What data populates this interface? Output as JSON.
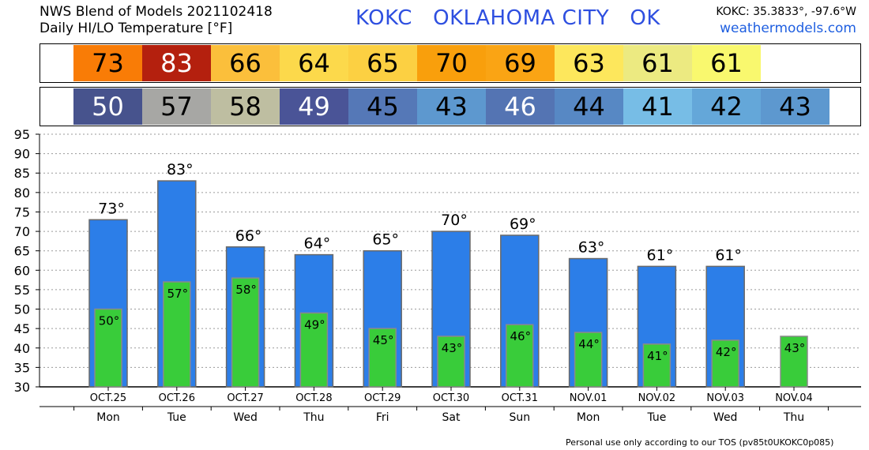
{
  "header": {
    "line1": "NWS Blend of Models 2021102418",
    "line2": "Daily HI/LO Temperature [°F]",
    "station": "KOKC   OKLAHOMA CITY   OK",
    "coords": "KOKC: 35.3833°, -97.6°W",
    "site": "weathermodels.com"
  },
  "hi_strip": [
    {
      "value": "73",
      "bg": "#f97c06",
      "fg": "#000000"
    },
    {
      "value": "83",
      "bg": "#b4200e",
      "fg": "#ffffff"
    },
    {
      "value": "66",
      "bg": "#fbbf3b",
      "fg": "#000000"
    },
    {
      "value": "64",
      "bg": "#fcd94b",
      "fg": "#000000"
    },
    {
      "value": "65",
      "bg": "#fcd042",
      "fg": "#000000"
    },
    {
      "value": "70",
      "bg": "#f99f0c",
      "fg": "#000000"
    },
    {
      "value": "69",
      "bg": "#faa414",
      "fg": "#000000"
    },
    {
      "value": "63",
      "bg": "#fde75c",
      "fg": "#000000"
    },
    {
      "value": "61",
      "bg": "#ecea81",
      "fg": "#000000"
    },
    {
      "value": "61",
      "bg": "#f9f86e",
      "fg": "#000000"
    }
  ],
  "lo_strip": [
    {
      "value": "50",
      "bg": "#47538d",
      "fg": "#ffffff"
    },
    {
      "value": "57",
      "bg": "#a7a7a4",
      "fg": "#000000"
    },
    {
      "value": "58",
      "bg": "#bebea1",
      "fg": "#000000"
    },
    {
      "value": "49",
      "bg": "#4a5497",
      "fg": "#ffffff"
    },
    {
      "value": "45",
      "bg": "#5578b7",
      "fg": "#000000"
    },
    {
      "value": "43",
      "bg": "#5d98cf",
      "fg": "#000000"
    },
    {
      "value": "46",
      "bg": "#5474b3",
      "fg": "#ffffff"
    },
    {
      "value": "44",
      "bg": "#5788c4",
      "fg": "#000000"
    },
    {
      "value": "41",
      "bg": "#77bde6",
      "fg": "#000000"
    },
    {
      "value": "42",
      "bg": "#64a7d9",
      "fg": "#000000"
    },
    {
      "value": "43",
      "bg": "#5d98cf",
      "fg": "#000000"
    }
  ],
  "chart_data": {
    "type": "bar",
    "categories": [
      "OCT.25",
      "OCT.26",
      "OCT.27",
      "OCT.28",
      "OCT.29",
      "OCT.30",
      "OCT.31",
      "NOV.01",
      "NOV.02",
      "NOV.03",
      "NOV.04"
    ],
    "days": [
      "Mon",
      "Tue",
      "Wed",
      "Thu",
      "Fri",
      "Sat",
      "Sun",
      "Mon",
      "Tue",
      "Wed",
      "Thu"
    ],
    "series": [
      {
        "values": [
          73,
          83,
          66,
          64,
          65,
          70,
          69,
          63,
          61,
          61,
          null
        ],
        "color": "#2c7ee8"
      },
      {
        "values": [
          50,
          57,
          58,
          49,
          45,
          43,
          46,
          44,
          41,
          42,
          43
        ],
        "color": "#39cc3a"
      }
    ],
    "degree_symbol": "°",
    "ylim": [
      30,
      95
    ],
    "yticks": [
      30,
      35,
      40,
      45,
      50,
      55,
      60,
      65,
      70,
      75,
      80,
      85,
      90,
      95
    ],
    "grid": true
  },
  "footer": "Personal use only according to our TOS (pv85t0UKOKC0p085)"
}
